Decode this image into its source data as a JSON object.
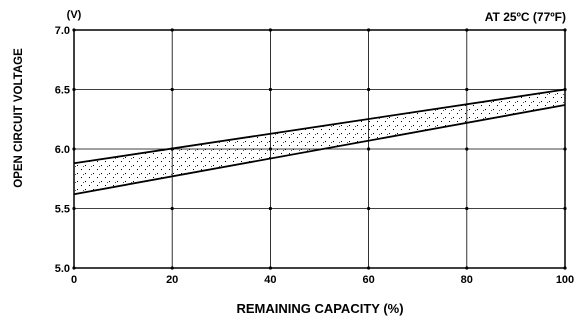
{
  "chart_data": {
    "type": "area",
    "title": "",
    "annotation": "AT 25ºC (77ºF)",
    "xlabel": "REMAINING CAPACITY (%)",
    "ylabel": "OPEN CIRCUIT VOLTAGE",
    "yunit": "(V)",
    "xlim": [
      0,
      100
    ],
    "ylim": [
      5.0,
      7.0
    ],
    "xticks": [
      0,
      20,
      40,
      60,
      80,
      100
    ],
    "xtick_labels": [
      "0",
      "20",
      "40",
      "60",
      "80",
      "100"
    ],
    "yticks": [
      5.0,
      5.5,
      6.0,
      6.5,
      7.0
    ],
    "ytick_labels": [
      "5.0",
      "5.5",
      "6.0",
      "6.5",
      "7.0"
    ],
    "grid": true,
    "band_fill": "stippled",
    "series": [
      {
        "x": [
          0,
          100
        ],
        "values": [
          5.88,
          6.5
        ]
      },
      {
        "x": [
          0,
          100
        ],
        "values": [
          5.62,
          6.37
        ]
      }
    ]
  }
}
